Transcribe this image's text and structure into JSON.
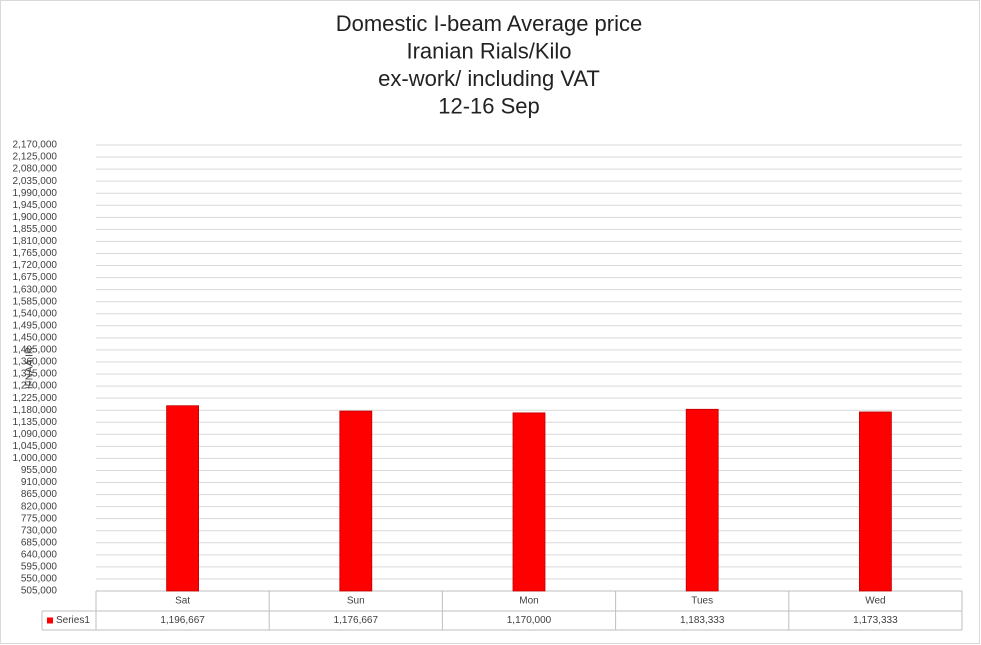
{
  "chart_data": {
    "type": "bar",
    "title_lines": [
      "Domestic I-beam Average price",
      "Iranian Rials/Kilo",
      "ex-work/ including VAT",
      "12-16 Sep"
    ],
    "y_label": "IFNAA.IR",
    "categories": [
      "Sat",
      "Sun",
      "Mon",
      "Tues",
      "Wed"
    ],
    "series": [
      {
        "name": "Series1",
        "color": "#ff0000",
        "values": [
          1196667,
          1176667,
          1170000,
          1183333,
          1173333
        ],
        "value_labels": [
          "1,196,667",
          "1,176,667",
          "1,170,000",
          "1,183,333",
          "1,173,333"
        ]
      }
    ],
    "ylim": [
      505000,
      2170000
    ],
    "yticks": [
      {
        "value": 505000,
        "label": "505,000"
      },
      {
        "value": 550000,
        "label": "550,000"
      },
      {
        "value": 595000,
        "label": "595,000"
      },
      {
        "value": 640000,
        "label": "640,000"
      },
      {
        "value": 685000,
        "label": "685,000"
      },
      {
        "value": 730000,
        "label": "730,000"
      },
      {
        "value": 775000,
        "label": "775,000"
      },
      {
        "value": 820000,
        "label": "820,000"
      },
      {
        "value": 865000,
        "label": "865,000"
      },
      {
        "value": 910000,
        "label": "910,000"
      },
      {
        "value": 955000,
        "label": "955,000"
      },
      {
        "value": 1000000,
        "label": "1,000,000"
      },
      {
        "value": 1045000,
        "label": "1,045,000"
      },
      {
        "value": 1090000,
        "label": "1,090,000"
      },
      {
        "value": 1135000,
        "label": "1,135,000"
      },
      {
        "value": 1180000,
        "label": "1,180,000"
      },
      {
        "value": 1225000,
        "label": "1,225,000"
      },
      {
        "value": 1270000,
        "label": "1,270,000"
      },
      {
        "value": 1315000,
        "label": "1,315,000"
      },
      {
        "value": 1360000,
        "label": "1,360,000"
      },
      {
        "value": 1405000,
        "label": "1,405,000"
      },
      {
        "value": 1450000,
        "label": "1,450,000"
      },
      {
        "value": 1495000,
        "label": "1,495,000"
      },
      {
        "value": 1540000,
        "label": "1,540,000"
      },
      {
        "value": 1585000,
        "label": "1,585,000"
      },
      {
        "value": 1630000,
        "label": "1,630,000"
      },
      {
        "value": 1675000,
        "label": "1,675,000"
      },
      {
        "value": 1720000,
        "label": "1,720,000"
      },
      {
        "value": 1765000,
        "label": "1,765,000"
      },
      {
        "value": 1810000,
        "label": "1,810,000"
      },
      {
        "value": 1855000,
        "label": "1,855,000"
      },
      {
        "value": 1900000,
        "label": "1,900,000"
      },
      {
        "value": 1945000,
        "label": "1,945,000"
      },
      {
        "value": 1990000,
        "label": "1,990,000"
      },
      {
        "value": 2035000,
        "label": "2,035,000"
      },
      {
        "value": 2080000,
        "label": "2,080,000"
      },
      {
        "value": 2125000,
        "label": "2,125,000"
      },
      {
        "value": 2170000,
        "label": "2,170,000"
      }
    ],
    "grid": true
  }
}
